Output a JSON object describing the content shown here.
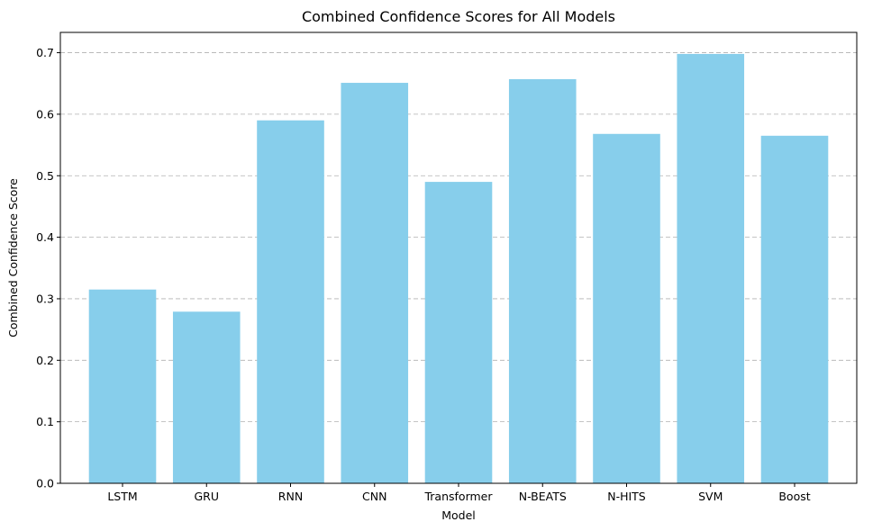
{
  "chart_data": {
    "type": "bar",
    "title": "Combined Confidence Scores for All Models",
    "xlabel": "Model",
    "ylabel": "Combined Confidence Score",
    "categories": [
      "LSTM",
      "GRU",
      "RNN",
      "CNN",
      "Transformer",
      "N-BEATS",
      "N-HITS",
      "SVM",
      "Boost"
    ],
    "values": [
      0.315,
      0.279,
      0.59,
      0.651,
      0.49,
      0.657,
      0.568,
      0.698,
      0.565
    ],
    "ylim": [
      0,
      0.733
    ],
    "yticks": [
      0.0,
      0.1,
      0.2,
      0.3,
      0.4,
      0.5,
      0.6,
      0.7
    ],
    "ytick_labels": [
      "0.0",
      "0.1",
      "0.2",
      "0.3",
      "0.4",
      "0.5",
      "0.6",
      "0.7"
    ],
    "grid": "y",
    "bar_color": "#87CEEB"
  }
}
